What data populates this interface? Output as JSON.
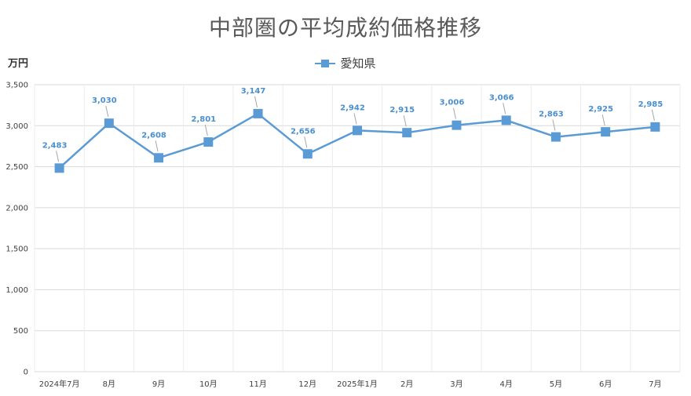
{
  "chart_data": {
    "type": "line",
    "title": "中部圏の平均成約価格推移",
    "ylabel": "万円",
    "xlabel": "",
    "categories": [
      "2024年7月",
      "8月",
      "9月",
      "10月",
      "11月",
      "12月",
      "2025年1月",
      "2月",
      "3月",
      "4月",
      "5月",
      "6月",
      "7月"
    ],
    "series": [
      {
        "name": "愛知県",
        "values": [
          2483,
          3030,
          2608,
          2801,
          3147,
          2656,
          2942,
          2915,
          3006,
          3066,
          2863,
          2925,
          2985
        ],
        "labels": [
          "2,483",
          "3,030",
          "2,608",
          "2,801",
          "3,147",
          "2,656",
          "2,942",
          "2,915",
          "3,006",
          "3,066",
          "2,863",
          "2,925",
          "2,985"
        ]
      }
    ],
    "ylim": [
      0,
      3500
    ],
    "yticks": [
      0,
      500,
      1000,
      1500,
      2000,
      2500,
      3000,
      3500
    ],
    "ytick_labels": [
      "0",
      "500",
      "1,000",
      "1,500",
      "2,000",
      "2,500",
      "3,000",
      "3,500"
    ],
    "grid": true,
    "legend_position": "top-center",
    "colors": {
      "series": "#5b9bd5",
      "label": "#4a8fcf",
      "grid": "#d9d9d9",
      "title": "#595959"
    }
  }
}
